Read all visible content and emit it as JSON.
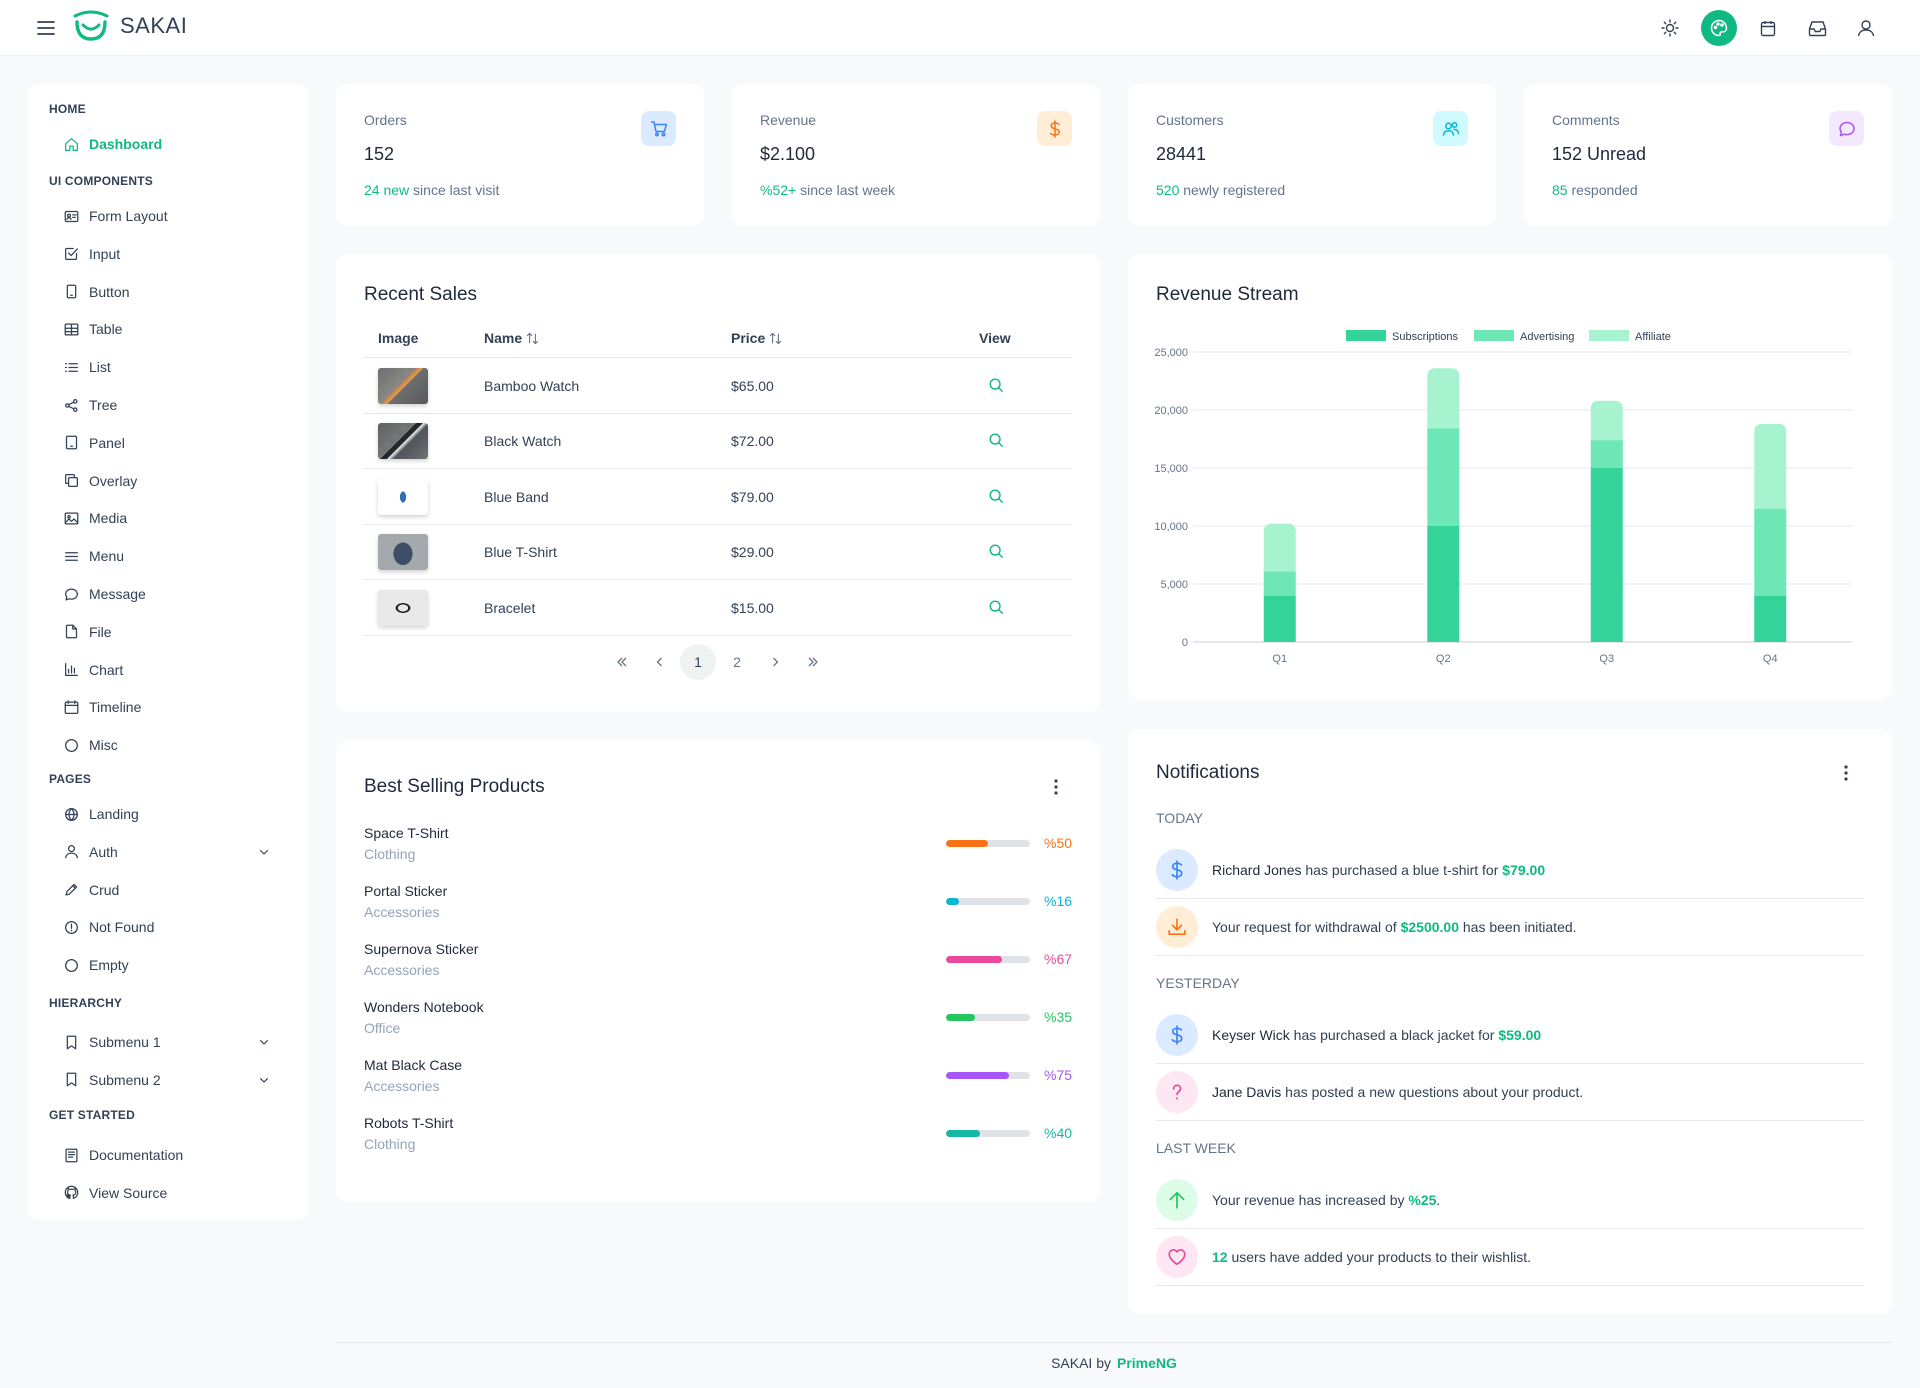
{
  "app": {
    "name": "SAKAI"
  },
  "topbar": {
    "icons": [
      "menu-icon",
      "sun-icon",
      "palette-icon",
      "calendar-icon",
      "inbox-icon",
      "user-icon"
    ]
  },
  "sidebar": {
    "sections": [
      {
        "title": "HOME",
        "items": [
          {
            "label": "Dashboard",
            "icon": "home-icon",
            "active": true
          }
        ]
      },
      {
        "title": "UI COMPONENTS",
        "items": [
          {
            "label": "Form Layout",
            "icon": "id-card-icon"
          },
          {
            "label": "Input",
            "icon": "check-square-icon"
          },
          {
            "label": "Button",
            "icon": "mobile-icon"
          },
          {
            "label": "Table",
            "icon": "table-icon"
          },
          {
            "label": "List",
            "icon": "list-icon"
          },
          {
            "label": "Tree",
            "icon": "share-icon"
          },
          {
            "label": "Panel",
            "icon": "tablet-icon"
          },
          {
            "label": "Overlay",
            "icon": "clone-icon"
          },
          {
            "label": "Media",
            "icon": "image-icon"
          },
          {
            "label": "Menu",
            "icon": "bars-icon"
          },
          {
            "label": "Message",
            "icon": "comment-icon"
          },
          {
            "label": "File",
            "icon": "file-icon"
          },
          {
            "label": "Chart",
            "icon": "chart-bar-icon"
          },
          {
            "label": "Timeline",
            "icon": "calendar-icon"
          },
          {
            "label": "Misc",
            "icon": "circle-icon"
          }
        ]
      },
      {
        "title": "PAGES",
        "items": [
          {
            "label": "Landing",
            "icon": "globe-icon"
          },
          {
            "label": "Auth",
            "icon": "user-icon",
            "expandable": true
          },
          {
            "label": "Crud",
            "icon": "pencil-icon"
          },
          {
            "label": "Not Found",
            "icon": "exclamation-circle-icon"
          },
          {
            "label": "Empty",
            "icon": "circle-icon"
          }
        ]
      },
      {
        "title": "HIERARCHY",
        "items": [
          {
            "label": "Submenu 1",
            "icon": "bookmark-icon",
            "expandable": true
          },
          {
            "label": "Submenu 2",
            "icon": "bookmark-icon",
            "expandable": true
          }
        ]
      },
      {
        "title": "GET STARTED",
        "items": [
          {
            "label": "Documentation",
            "icon": "book-icon"
          },
          {
            "label": "View Source",
            "icon": "github-icon"
          }
        ]
      }
    ]
  },
  "stats": [
    {
      "label": "Orders",
      "value": "152",
      "highlight": "24 new",
      "foot": " since last visit",
      "icon": "shopping-cart-icon",
      "color": "#3b82f6",
      "bg": "#dbeafe"
    },
    {
      "label": "Revenue",
      "value": "$2.100",
      "highlight": "%52+",
      "foot": " since last week",
      "icon": "dollar-icon",
      "color": "#f97316",
      "bg": "#ffedd5"
    },
    {
      "label": "Customers",
      "value": "28441",
      "highlight": "520",
      "foot": " newly registered",
      "icon": "users-icon",
      "color": "#06b6d4",
      "bg": "#cffafe"
    },
    {
      "label": "Comments",
      "value": "152 Unread",
      "highlight": "85",
      "foot": " responded",
      "icon": "comment-icon",
      "color": "#a855f7",
      "bg": "#f3e8ff"
    }
  ],
  "recent_sales": {
    "title": "Recent Sales",
    "columns": [
      "Image",
      "Name",
      "Price",
      "View"
    ],
    "rows": [
      {
        "name": "Bamboo Watch",
        "price": "$65.00"
      },
      {
        "name": "Black Watch",
        "price": "$72.00"
      },
      {
        "name": "Blue Band",
        "price": "$79.00"
      },
      {
        "name": "Blue T-Shirt",
        "price": "$29.00"
      },
      {
        "name": "Bracelet",
        "price": "$15.00"
      }
    ],
    "pages": [
      "1",
      "2"
    ],
    "current_page": "1"
  },
  "revenue_stream": {
    "title": "Revenue Stream"
  },
  "chart_data": {
    "type": "bar",
    "stacked": true,
    "categories": [
      "Q1",
      "Q2",
      "Q3",
      "Q4"
    ],
    "series": [
      {
        "name": "Subscriptions",
        "values": [
          4000,
          10000,
          15000,
          4000
        ],
        "color": "#34d399"
      },
      {
        "name": "Advertising",
        "values": [
          2100,
          8400,
          2400,
          7500
        ],
        "color": "#6ee7b7"
      },
      {
        "name": "Affiliate",
        "values": [
          4100,
          5200,
          3400,
          7300
        ],
        "color": "#a7f3d0"
      }
    ],
    "ylim": [
      0,
      25000
    ],
    "yticks": [
      "0",
      "5,000",
      "10,000",
      "15,000",
      "20,000",
      "25,000"
    ],
    "legend": "top-center",
    "grid": true
  },
  "best_selling": {
    "title": "Best Selling Products",
    "items": [
      {
        "name": "Space T-Shirt",
        "category": "Clothing",
        "pct": "%50",
        "value": 0.5,
        "color": "#f97316"
      },
      {
        "name": "Portal Sticker",
        "category": "Accessories",
        "pct": "%16",
        "value": 0.16,
        "color": "#06b6d4"
      },
      {
        "name": "Supernova Sticker",
        "category": "Accessories",
        "pct": "%67",
        "value": 0.67,
        "color": "#ec4899"
      },
      {
        "name": "Wonders Notebook",
        "category": "Office",
        "pct": "%35",
        "value": 0.35,
        "color": "#22c55e"
      },
      {
        "name": "Mat Black Case",
        "category": "Accessories",
        "pct": "%75",
        "value": 0.75,
        "color": "#a855f7"
      },
      {
        "name": "Robots T-Shirt",
        "category": "Clothing",
        "pct": "%40",
        "value": 0.4,
        "color": "#14b8a6"
      }
    ]
  },
  "notifications": {
    "title": "Notifications",
    "groups": [
      {
        "label": "TODAY",
        "items": [
          {
            "icon": "dollar-icon",
            "who": "Richard Jones",
            "text": " has purchased a blue t-shirt for ",
            "amount": "$79.00",
            "tail": ""
          },
          {
            "icon": "download-icon",
            "who": "",
            "text": "Your request for withdrawal of ",
            "amount": "$2500.00",
            "tail": " has been initiated."
          }
        ]
      },
      {
        "label": "YESTERDAY",
        "items": [
          {
            "icon": "dollar-icon",
            "who": "Keyser Wick",
            "text": " has purchased a black jacket for ",
            "amount": "$59.00",
            "tail": ""
          },
          {
            "icon": "question-icon",
            "who": "Jane Davis",
            "text": " has posted a new questions about your product.",
            "amount": "",
            "tail": ""
          }
        ]
      },
      {
        "label": "LAST WEEK",
        "items": [
          {
            "icon": "arrow-up-icon",
            "who": "",
            "text": "Your revenue has increased by ",
            "amount": "%25",
            "tail": "."
          },
          {
            "icon": "heart-icon",
            "who": "",
            "text": "",
            "amount": "12",
            "tail": " users have added your products to their wishlist."
          }
        ]
      }
    ]
  },
  "footer": {
    "text": "SAKAI by",
    "brand": "PrimeNG"
  }
}
